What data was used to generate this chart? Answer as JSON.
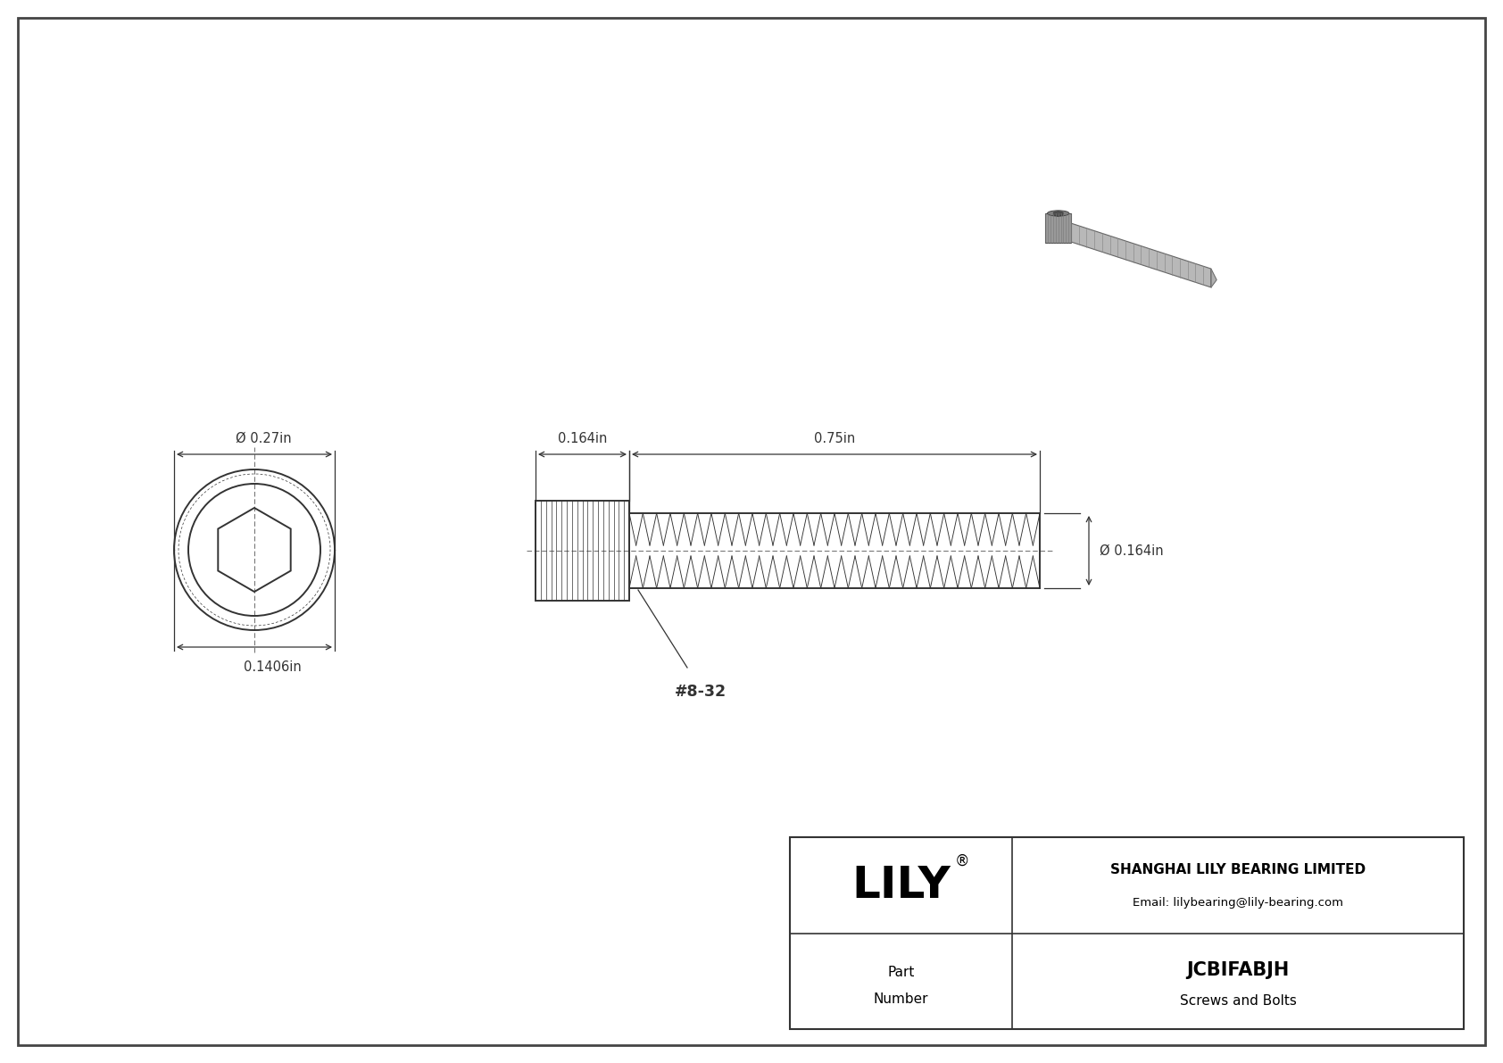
{
  "bg_color": "#ffffff",
  "line_color": "#333333",
  "title_company": "SHANGHAI LILY BEARING LIMITED",
  "title_email": "Email: lilybearing@lily-bearing.com",
  "part_number": "JCBIFABJH",
  "part_category": "Screws and Bolts",
  "logo_text": "LILY",
  "dim_diameter_head": "0.27in",
  "dim_head_length": "0.164in",
  "dim_thread_length": "0.75in",
  "dim_thread_diameter": "0.164in",
  "dim_head_width": "0.1406in",
  "thread_label": "#8-32",
  "phi_symbol": "Ø"
}
